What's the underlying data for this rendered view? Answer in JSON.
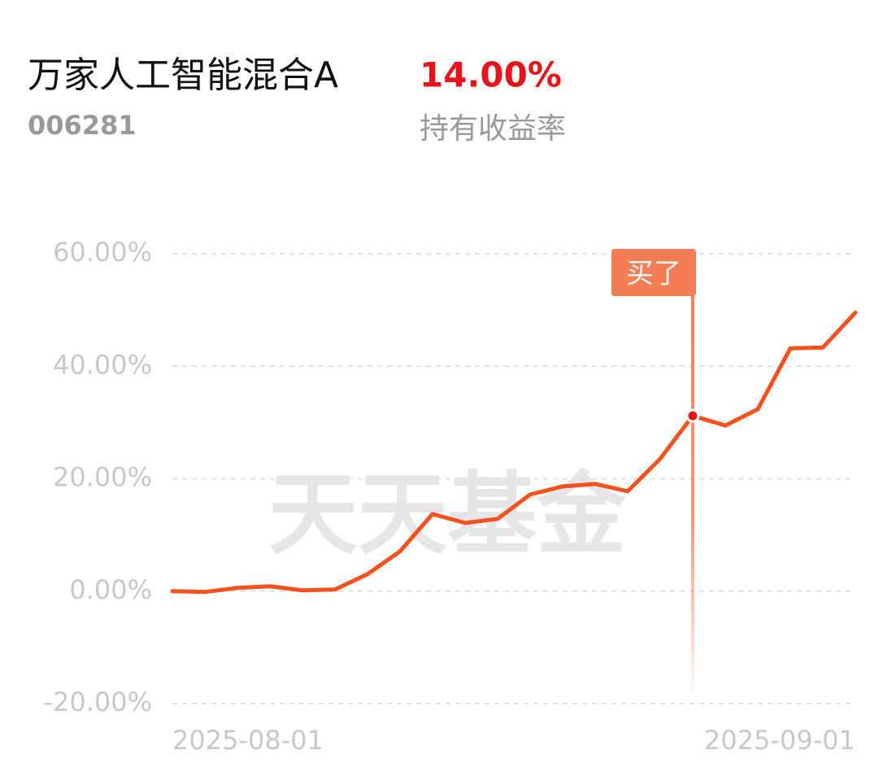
{
  "chart_data": {
    "type": "line",
    "title": "万家人工智能混合A",
    "code": "006281",
    "return_label": "14.00%",
    "return_caption": "持有收益率",
    "watermark": "天天基金",
    "categories": [
      "2025-08-01",
      null,
      null,
      null,
      null,
      null,
      null,
      null,
      null,
      null,
      null,
      null,
      null,
      null,
      null,
      null,
      null,
      null,
      null,
      null,
      null,
      "2025-09-01"
    ],
    "series": [
      {
        "name": "持有收益率",
        "color": "#f4511e",
        "values": [
          0,
          -0.14,
          0.58,
          0.87,
          0.14,
          0.29,
          3.03,
          7.08,
          13.72,
          12.13,
          12.85,
          17.18,
          18.63,
          19.06,
          17.76,
          23.54,
          31.19,
          29.46,
          32.35,
          43.18,
          43.32,
          49.53
        ]
      }
    ],
    "annotations": [
      {
        "text": "买了",
        "category_index": 16,
        "color": "#f47d55"
      }
    ],
    "ylim": [
      -20,
      60
    ],
    "yticks": [
      {
        "value": -20,
        "label": "-20.00%"
      },
      {
        "value": 0,
        "label": "0.00%"
      },
      {
        "value": 20,
        "label": "20.00%"
      },
      {
        "value": 40,
        "label": "40.00%"
      },
      {
        "value": 60,
        "label": "60.00%"
      }
    ],
    "grid": true
  }
}
